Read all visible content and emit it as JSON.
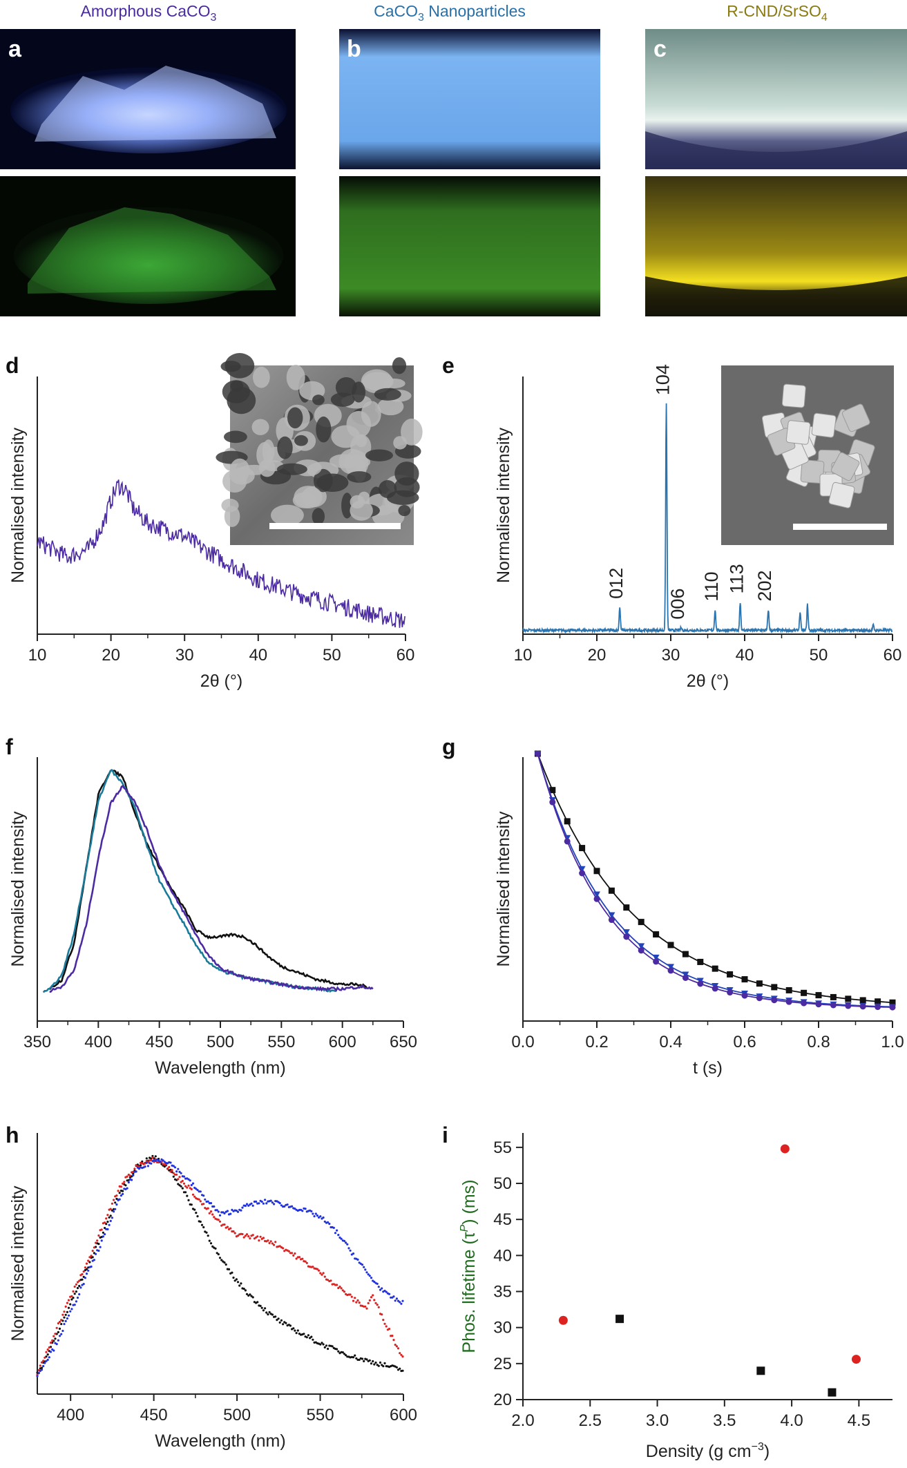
{
  "photos": {
    "titles": [
      {
        "id": "a",
        "text": "Amorphous CaCO",
        "sub": "3",
        "color": "#4a2aa0"
      },
      {
        "id": "b",
        "text": "CaCO",
        "sub": "3",
        "tail": " Nanoparticles",
        "color": "#2870a8"
      },
      {
        "id": "c",
        "text": "R-CND/SrSO",
        "sub": "4",
        "color": "#8a7a10"
      }
    ],
    "labels": [
      "a",
      "b",
      "c"
    ]
  },
  "panel_labels": [
    "d",
    "e",
    "f",
    "g",
    "h",
    "i"
  ],
  "colors": {
    "purple": "#4b2aa2",
    "teal": "#1a7a9a",
    "xrd_blue": "#2a74b0",
    "black": "#111111",
    "blue_dot": "#2233dd",
    "red_dot": "#dd2222",
    "ylabel_green": "#1e6b1e"
  },
  "chart_data": [
    {
      "panel": "d",
      "type": "line",
      "xlabel": "2θ (°)",
      "ylabel": "Normalised intensity",
      "xlim": [
        10,
        60
      ],
      "xticks": [
        10,
        20,
        30,
        40,
        50,
        60
      ],
      "series": [
        {
          "x": [
            10,
            14,
            17,
            19,
            20,
            21,
            22,
            23,
            25,
            28,
            30,
            32,
            35,
            40,
            45,
            50,
            55,
            60
          ],
          "y": [
            0.36,
            0.3,
            0.33,
            0.43,
            0.52,
            0.58,
            0.56,
            0.49,
            0.43,
            0.4,
            0.38,
            0.34,
            0.29,
            0.21,
            0.16,
            0.12,
            0.08,
            0.05
          ]
        }
      ]
    },
    {
      "panel": "e",
      "type": "line",
      "xlabel": "2θ (°)",
      "ylabel": "Normalised intensity",
      "xlim": [
        10,
        60
      ],
      "xticks": [
        10,
        20,
        30,
        40,
        50,
        60
      ],
      "peaks": [
        {
          "x": 23.1,
          "h": 0.09,
          "label": "012"
        },
        {
          "x": 29.4,
          "h": 0.88,
          "label": "104"
        },
        {
          "x": 31.4,
          "h": 0.01,
          "label": "006"
        },
        {
          "x": 36.0,
          "h": 0.08,
          "label": "110"
        },
        {
          "x": 39.4,
          "h": 0.11,
          "label": "113"
        },
        {
          "x": 43.2,
          "h": 0.08,
          "label": "202"
        },
        {
          "x": 47.5,
          "h": 0.07,
          "label": ""
        },
        {
          "x": 48.5,
          "h": 0.1,
          "label": ""
        },
        {
          "x": 57.4,
          "h": 0.02,
          "label": ""
        }
      ],
      "baseline": 0.015
    },
    {
      "panel": "f",
      "type": "line",
      "xlabel": "Wavelength (nm)",
      "ylabel": "Normalised intensity",
      "xlim": [
        350,
        650
      ],
      "xticks": [
        350,
        400,
        450,
        500,
        550,
        600,
        650
      ],
      "series": [
        {
          "color": "#111111",
          "x": [
            360,
            370,
            380,
            390,
            400,
            410,
            420,
            430,
            440,
            450,
            460,
            470,
            480,
            490,
            500,
            510,
            520,
            530,
            540,
            550,
            560,
            570,
            580,
            590,
            600,
            610,
            620
          ],
          "y": [
            0.02,
            0.06,
            0.22,
            0.55,
            0.88,
            0.99,
            0.96,
            0.8,
            0.66,
            0.56,
            0.46,
            0.38,
            0.28,
            0.25,
            0.25,
            0.26,
            0.25,
            0.21,
            0.16,
            0.12,
            0.1,
            0.08,
            0.06,
            0.05,
            0.04,
            0.04,
            0.03
          ]
        },
        {
          "color": "#1a7a9a",
          "x": [
            355,
            360,
            370,
            380,
            390,
            400,
            410,
            420,
            430,
            440,
            450,
            460,
            470,
            480,
            490,
            500,
            520,
            540,
            560,
            580,
            595
          ],
          "y": [
            0.01,
            0.02,
            0.08,
            0.26,
            0.55,
            0.85,
            0.99,
            0.93,
            0.82,
            0.65,
            0.5,
            0.4,
            0.31,
            0.21,
            0.14,
            0.1,
            0.07,
            0.05,
            0.03,
            0.02,
            0.01
          ]
        },
        {
          "color": "#4b2aa2",
          "x": [
            360,
            370,
            380,
            390,
            400,
            410,
            420,
            430,
            440,
            450,
            460,
            470,
            480,
            490,
            500,
            520,
            540,
            560,
            580,
            600,
            615,
            625
          ],
          "y": [
            0.01,
            0.03,
            0.1,
            0.3,
            0.6,
            0.84,
            0.92,
            0.85,
            0.72,
            0.57,
            0.45,
            0.36,
            0.26,
            0.17,
            0.11,
            0.07,
            0.05,
            0.03,
            0.02,
            0.02,
            0.03,
            0.02
          ]
        }
      ]
    },
    {
      "panel": "g",
      "type": "scatter",
      "xlabel": "t (s)",
      "ylabel": "Normalised intensity",
      "xlim": [
        0.0,
        1.0
      ],
      "xticks": [
        0.0,
        0.2,
        0.4,
        0.6,
        0.8,
        1.0
      ],
      "xtick_labels": [
        "0.0",
        "0.2",
        "0.4",
        "0.6",
        "0.8",
        "1.0"
      ],
      "series": [
        {
          "color": "#111111",
          "marker": "square",
          "tau": 0.26,
          "x": [
            0.04,
            0.08,
            0.12,
            0.16,
            0.2,
            0.24,
            0.28,
            0.32,
            0.36,
            0.4,
            0.44,
            0.48,
            0.52,
            0.56,
            0.6,
            0.64,
            0.68,
            0.72,
            0.76,
            0.8,
            0.84,
            0.88,
            0.92,
            0.96,
            1.0
          ]
        },
        {
          "color": "#2244bb",
          "marker": "triangle",
          "tau": 0.2,
          "x": [
            0.04,
            0.08,
            0.12,
            0.16,
            0.2,
            0.24,
            0.28,
            0.32,
            0.36,
            0.4,
            0.44,
            0.48,
            0.52,
            0.56,
            0.6,
            0.64,
            0.68,
            0.72,
            0.76,
            0.8,
            0.84,
            0.88,
            0.92,
            0.96,
            1.0
          ]
        },
        {
          "color": "#4b2aa2",
          "marker": "circle",
          "tau": 0.19,
          "x": [
            0.04,
            0.08,
            0.12,
            0.16,
            0.2,
            0.24,
            0.28,
            0.32,
            0.36,
            0.4,
            0.44,
            0.48,
            0.52,
            0.56,
            0.6,
            0.64,
            0.68,
            0.72,
            0.76,
            0.8,
            0.84,
            0.88,
            0.92,
            0.96,
            1.0
          ]
        }
      ]
    },
    {
      "panel": "h",
      "type": "line",
      "xlabel": "Wavelength (nm)",
      "ylabel": "Normalised intensity",
      "xlim": [
        380,
        600
      ],
      "xticks": [
        400,
        450,
        500,
        550,
        600
      ],
      "series": [
        {
          "color": "#111111",
          "x": [
            380,
            390,
            400,
            410,
            420,
            430,
            440,
            450,
            460,
            470,
            480,
            490,
            500,
            510,
            520,
            530,
            540,
            550,
            560,
            570,
            580,
            590,
            600
          ],
          "y": [
            0.0,
            0.15,
            0.32,
            0.48,
            0.65,
            0.82,
            0.94,
            0.98,
            0.92,
            0.8,
            0.66,
            0.52,
            0.42,
            0.34,
            0.27,
            0.22,
            0.18,
            0.14,
            0.11,
            0.08,
            0.06,
            0.04,
            0.02
          ]
        },
        {
          "color": "#dd2222",
          "x": [
            380,
            390,
            400,
            410,
            420,
            430,
            440,
            448,
            455,
            460,
            470,
            480,
            490,
            500,
            510,
            520,
            530,
            540,
            550,
            560,
            570,
            578,
            581,
            590,
            600
          ],
          "y": [
            0.0,
            0.18,
            0.35,
            0.5,
            0.68,
            0.85,
            0.94,
            0.97,
            0.96,
            0.92,
            0.85,
            0.76,
            0.68,
            0.63,
            0.62,
            0.6,
            0.56,
            0.51,
            0.46,
            0.4,
            0.34,
            0.3,
            0.36,
            0.22,
            0.07
          ]
        },
        {
          "color": "#2233dd",
          "x": [
            380,
            390,
            400,
            410,
            420,
            430,
            440,
            450,
            455,
            460,
            470,
            480,
            490,
            500,
            510,
            520,
            530,
            540,
            550,
            560,
            570,
            580,
            590,
            600
          ],
          "y": [
            0.0,
            0.12,
            0.28,
            0.45,
            0.62,
            0.8,
            0.92,
            0.96,
            0.97,
            0.95,
            0.88,
            0.8,
            0.72,
            0.74,
            0.77,
            0.78,
            0.76,
            0.74,
            0.71,
            0.64,
            0.54,
            0.44,
            0.36,
            0.32
          ]
        }
      ]
    },
    {
      "panel": "i",
      "type": "scatter",
      "xlabel": "Density (g cm",
      "xlabel_sup": "−3",
      "xlabel_tail": ")",
      "ylabel": "Phos. lifetime (τ",
      "ylabel_sup": "P",
      "ylabel_tail": ") (ms)",
      "xlim": [
        2.0,
        4.75
      ],
      "ylim": [
        20,
        57
      ],
      "xticks": [
        2.0,
        2.5,
        3.0,
        3.5,
        4.0,
        4.5
      ],
      "xtick_labels": [
        "2.0",
        "2.5",
        "3.0",
        "3.5",
        "4.0",
        "4.5"
      ],
      "yticks": [
        20,
        25,
        30,
        35,
        40,
        45,
        50,
        55
      ],
      "series": [
        {
          "color": "#dd2222",
          "marker": "circle",
          "points": [
            [
              2.3,
              31.0
            ],
            [
              3.95,
              54.8
            ],
            [
              4.48,
              25.6
            ]
          ]
        },
        {
          "color": "#111111",
          "marker": "square",
          "points": [
            [
              2.72,
              31.2
            ],
            [
              3.77,
              24.0
            ],
            [
              4.3,
              21.0
            ]
          ]
        }
      ]
    }
  ]
}
